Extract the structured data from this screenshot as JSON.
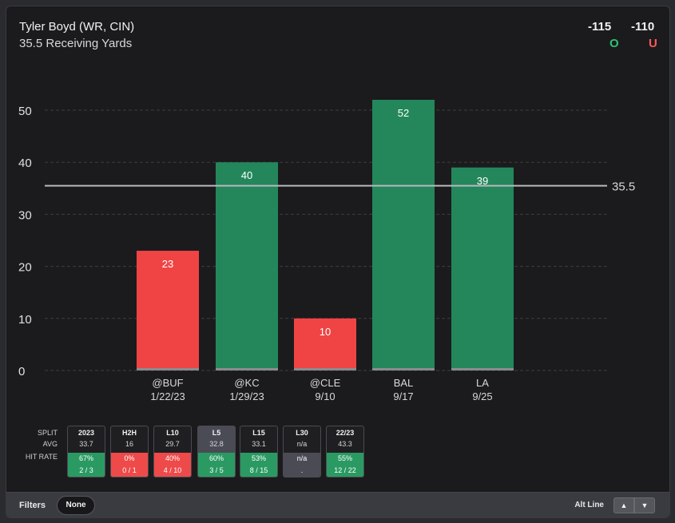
{
  "header": {
    "player": "Tyler Boyd (WR, CIN)",
    "line_value": "35.5",
    "prop_label": "Receiving Yards",
    "over_odds": "-115",
    "under_odds": "-110",
    "over_label": "O",
    "under_label": "U",
    "over_color": "#2fc273",
    "under_color": "#ff5a5a"
  },
  "chart_data": {
    "type": "bar",
    "categories": [
      "@BUF",
      "@KC",
      "@CLE",
      "BAL",
      "LA"
    ],
    "dates": [
      "1/22/23",
      "1/29/23",
      "9/10",
      "9/17",
      "9/25"
    ],
    "values": [
      23,
      40,
      10,
      52,
      39
    ],
    "colors": [
      "#f04444",
      "#23875b",
      "#f04444",
      "#23875b",
      "#23875b"
    ],
    "y_ticks": [
      0,
      10,
      20,
      30,
      40,
      50
    ],
    "ylim": [
      0,
      52
    ],
    "line": 35.5,
    "line_label": "35.5",
    "grid": true,
    "title": "35.5 Receiving Yards"
  },
  "splits": {
    "row_labels": [
      "SPLIT",
      "AVG",
      "HIT RATE"
    ],
    "items": [
      {
        "name": "2023",
        "avg": "33.7",
        "pct": "67%",
        "frac": "2 / 3",
        "status": "g"
      },
      {
        "name": "H2H",
        "avg": "16",
        "pct": "0%",
        "frac": "0 / 1",
        "status": "r"
      },
      {
        "name": "L10",
        "avg": "29.7",
        "pct": "40%",
        "frac": "4 / 10",
        "status": "r"
      },
      {
        "name": "L5",
        "avg": "32.8",
        "pct": "60%",
        "frac": "3 / 5",
        "status": "g",
        "active": true
      },
      {
        "name": "L15",
        "avg": "33.1",
        "pct": "53%",
        "frac": "8 / 15",
        "status": "g"
      },
      {
        "name": "L30",
        "avg": "n/a",
        "pct": "n/a",
        "frac": ".",
        "status": "n"
      },
      {
        "name": "22/23",
        "avg": "43.3",
        "pct": "55%",
        "frac": "12 / 22",
        "status": "g"
      }
    ]
  },
  "footer": {
    "filters_label": "Filters",
    "filter_value": "None",
    "alt_line_label": "Alt Line",
    "up_icon": "chevron-up-icon",
    "down_icon": "chevron-down-icon"
  }
}
